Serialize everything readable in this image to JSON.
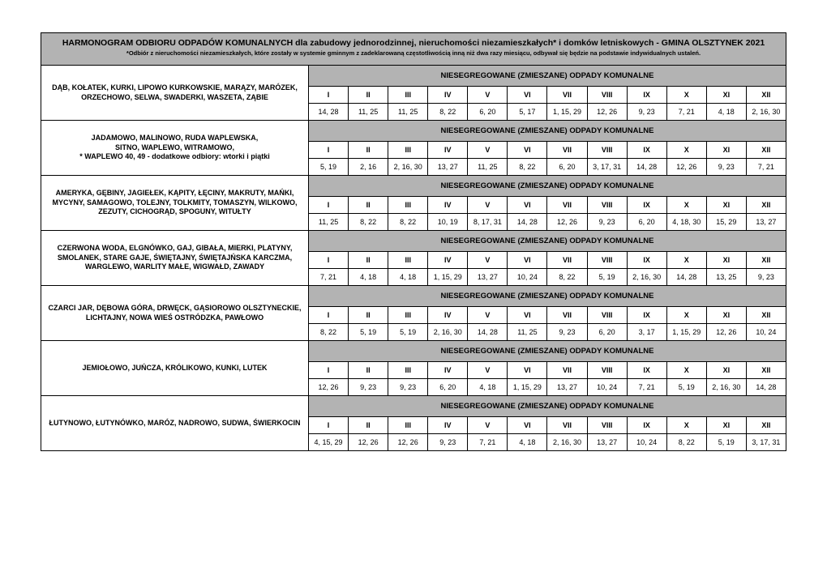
{
  "title_main": "HARMONOGRAM ODBIORU ODPADÓW KOMUNALNYCH dla zabudowy jednorodzinnej, nieruchomości niezamieszkałych* i domków letniskowych - GMINA OLSZTYNEK 2021",
  "title_sub": "*Odbiór z nieruchomości niezamieszkałych, które zostały w systemie gminnym z zadeklarowaną częstotliwością inną niż dwa razy miesiącu, odbywał się będzie na podstawie indywidualnych ustaleń.",
  "category_label": "NIESEGREGOWANE (ZMIESZANE) ODPADY KOMUNALNE",
  "months": [
    "I",
    "II",
    "III",
    "IV",
    "V",
    "VI",
    "VII",
    "VIII",
    "IX",
    "X",
    "XI",
    "XII"
  ],
  "sections": [
    {
      "area": "DĄB, KOŁATEK, KURKI, LIPOWO KURKOWSKIE, MARĄZY, MARÓZEK, ORZECHOWO,  SELWA, SWADERKI, WASZETA, ZĄBIE",
      "dates": [
        "14, 28",
        "11, 25",
        "11, 25",
        "8, 22",
        "6, 20",
        "5, 17",
        "1, 15, 29",
        "12, 26",
        "9, 23",
        "7, 21",
        "4, 18",
        "2, 16, 30"
      ]
    },
    {
      "area": "JADAMOWO, MALINOWO, RUDA WAPLEWSKA,\nSITNO, WAPLEWO, WITRAMOWO,\n* WAPLEWO 40, 49 - dodatkowe odbiory: wtorki i piątki",
      "dates": [
        "5, 19",
        "2, 16",
        "2, 16, 30",
        "13, 27",
        "11, 25",
        "8, 22",
        "6, 20",
        "3, 17, 31",
        "14, 28",
        "12, 26",
        "9, 23",
        "7, 21"
      ]
    },
    {
      "area": "AMERYKA, GĘBINY, JAGIEŁEK, KĄPITY, ŁĘCINY, MAKRUTY, MAŃKI, MYCYNY, SAMAGOWO, TOLEJNY, TOLKMITY, TOMASZYN, WILKOWO, ZEZUTY, CICHOGRĄD, SPOGUNY, WITUŁTY",
      "dates": [
        "11, 25",
        "8, 22",
        "8, 22",
        "10, 19",
        "8, 17, 31",
        "14, 28",
        "12, 26",
        "9, 23",
        "6, 20",
        "4, 18, 30",
        "15, 29",
        "13, 27"
      ]
    },
    {
      "area": "CZERWONA WODA, ELGNÓWKO, GAJ, GIBAŁA, MIERKI, PLATYNY, SMOLANEK, STARE GAJE, ŚWIĘTAJNY, ŚWIĘTAJŃSKA KARCZMA, WARGLEWO, WARLITY MAŁE, WIGWAŁD, ZAWADY",
      "dates": [
        "7, 21",
        "4, 18",
        "4, 18",
        "1, 15, 29",
        "13, 27",
        "10, 24",
        "8, 22",
        "5, 19",
        "2, 16, 30",
        "14, 28",
        "13, 25",
        "9, 23"
      ]
    },
    {
      "area": "CZARCI JAR, DĘBOWA GÓRA, DRWĘCK, GĄSIOROWO OLSZTYNECKIE, LICHTAJNY, NOWA WIEŚ OSTRÓDZKA, PAWŁOWO",
      "dates": [
        "8, 22",
        "5, 19",
        "5, 19",
        "2, 16, 30",
        "14, 28",
        "11, 25",
        "9, 23",
        "6, 20",
        "3, 17",
        "1, 15, 29",
        "12, 26",
        "10, 24"
      ]
    },
    {
      "area": "JEMIOŁOWO, JUŃCZA, KRÓLIKOWO, KUNKI, LUTEK",
      "dates": [
        "12, 26",
        "9, 23",
        "9, 23",
        "6, 20",
        "4, 18",
        "1, 15, 29",
        "13, 27",
        "10, 24",
        "7, 21",
        "5, 19",
        "2, 16, 30",
        "14, 28"
      ]
    },
    {
      "area": "ŁUTYNOWO, ŁUTYNÓWKO, MARÓZ, NADROWO, SUDWA, ŚWIERKOCIN",
      "dates": [
        "4, 15, 29",
        "12, 26",
        "12, 26",
        "9, 23",
        "7, 21",
        "4, 18",
        "2, 16, 30",
        "13, 27",
        "10, 24",
        "8, 22",
        "5, 19",
        "3, 17, 31"
      ]
    }
  ]
}
